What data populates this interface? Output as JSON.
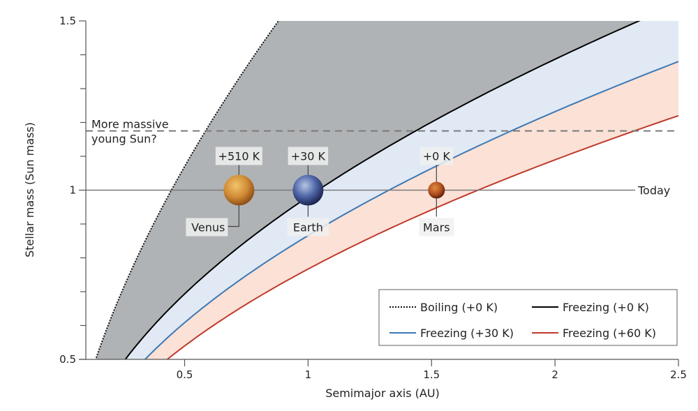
{
  "chart_data": {
    "type": "area",
    "title": "",
    "xlabel": "Semimajor axis (AU)",
    "ylabel": "Stellar mass (Sun mass)",
    "xlim": [
      0.1,
      2.5
    ],
    "ylim": [
      0.5,
      1.5
    ],
    "xticks": [
      0.5,
      1,
      1.5,
      2,
      2.5
    ],
    "xtick_labels": [
      "0.5",
      "1",
      "1.5",
      "2",
      "2.5"
    ],
    "yticks": [
      0.5,
      0.6,
      0.7,
      0.8,
      0.9,
      1.0,
      1.1,
      1.2,
      1.3,
      1.4,
      1.5
    ],
    "ytick_labels": [
      "0.5",
      "",
      "",
      "",
      "",
      "1",
      "",
      "",
      "",
      "",
      "1.5"
    ],
    "grid": false,
    "series": [
      {
        "name": "Boiling (+0 K)",
        "color": "#111111",
        "style": "dotted",
        "points": [
          [
            0.14,
            0.5
          ],
          [
            0.3,
            0.8
          ],
          [
            0.5,
            1.05
          ],
          [
            0.7,
            1.3
          ],
          [
            0.8,
            1.4
          ],
          [
            0.88,
            1.5
          ]
        ]
      },
      {
        "name": "Freezing (+0 K)",
        "color": "#000000",
        "style": "solid",
        "points": [
          [
            0.26,
            0.5
          ],
          [
            0.6,
            0.8
          ],
          [
            1.0,
            1.0
          ],
          [
            1.5,
            1.22
          ],
          [
            2.0,
            1.39
          ],
          [
            2.34,
            1.5
          ]
        ]
      },
      {
        "name": "Freezing (+30 K)",
        "color": "#3c78b4",
        "style": "solid",
        "points": [
          [
            0.34,
            0.5
          ],
          [
            0.75,
            0.82
          ],
          [
            1.2,
            1.0
          ],
          [
            1.8,
            1.19
          ],
          [
            2.5,
            1.38
          ]
        ]
      },
      {
        "name": "Freezing (+60 K)",
        "color": "#c0392b",
        "style": "solid",
        "points": [
          [
            0.43,
            0.5
          ],
          [
            1.0,
            0.8
          ],
          [
            1.6,
            1.0
          ],
          [
            2.1,
            1.12
          ],
          [
            2.5,
            1.22
          ]
        ]
      }
    ],
    "regions": [
      {
        "name": "runaway-greenhouse-zone",
        "between": [
          "Boiling (+0 K)",
          "Freezing (+0 K)"
        ],
        "color": "#b0b3b5"
      },
      {
        "name": "habitable-zone-30K",
        "between": [
          "Freezing (+0 K)",
          "Freezing (+30 K)"
        ],
        "color": "#e1e9f5"
      },
      {
        "name": "habitable-zone-60K",
        "between": [
          "Freezing (+30 K)",
          "Freezing (+60 K)"
        ],
        "color": "#fbe1d6"
      }
    ],
    "reference_lines": [
      {
        "name": "today",
        "y": 1.0,
        "label": "Today",
        "style": "solid",
        "color": "#7a7a7a"
      },
      {
        "name": "young-sun",
        "y": 1.175,
        "label": "More massive young Sun?",
        "label_lines": [
          "More massive",
          "young Sun?"
        ],
        "style": "dashed",
        "color": "#7a7a7a"
      }
    ],
    "planets": [
      {
        "name": "Venus",
        "x": 0.72,
        "y": 1.0,
        "temp_label": "+510 K",
        "color": "#c8822e",
        "highlight": "#e6b15a"
      },
      {
        "name": "Earth",
        "x": 1.0,
        "y": 1.0,
        "temp_label": "+30 K",
        "color": "#4a5fa0",
        "highlight": "#9ab0d8"
      },
      {
        "name": "Mars",
        "x": 1.52,
        "y": 1.0,
        "temp_label": "+0 K",
        "color": "#a5441b",
        "highlight": "#d67a3c"
      }
    ],
    "legend": {
      "placement": "bottom-right",
      "entries": [
        {
          "label": "Boiling (+0 K)",
          "color": "#111111",
          "style": "dotted"
        },
        {
          "label": "Freezing (+0 K)",
          "color": "#000000",
          "style": "solid"
        },
        {
          "label": "Freezing (+30 K)",
          "color": "#3c78b4",
          "style": "solid"
        },
        {
          "label": "Freezing (+60 K)",
          "color": "#c0392b",
          "style": "solid"
        }
      ]
    }
  }
}
